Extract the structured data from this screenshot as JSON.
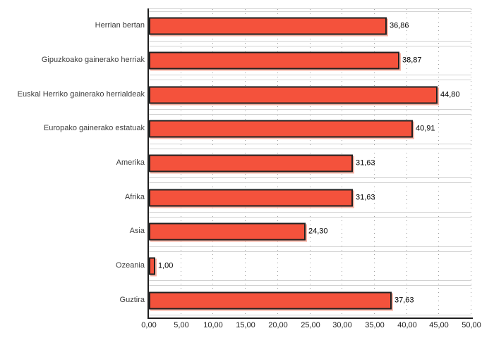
{
  "chart_data": {
    "type": "bar",
    "orientation": "horizontal",
    "title": "",
    "xlabel": "",
    "ylabel": "",
    "legend": "none",
    "grid": "vertical-dotted",
    "xlim": [
      0,
      50
    ],
    "categories": [
      "Herrian bertan",
      "Gipuzkoako gainerako herriak",
      "Euskal Herriko gainerako herrialdeak",
      "Europako gainerako estatuak",
      "Amerika",
      "Afrika",
      "Asia",
      "Ozeania",
      "Guztira"
    ],
    "values": [
      36.86,
      38.87,
      44.8,
      40.91,
      31.63,
      31.63,
      24.3,
      1.0,
      37.63
    ],
    "value_labels": [
      "36,86",
      "38,87",
      "44,80",
      "40,91",
      "31,63",
      "31,63",
      "24,30",
      "1,00",
      "37,63"
    ],
    "x_ticks": [
      {
        "value": 0,
        "label": "0,00"
      },
      {
        "value": 5,
        "label": "5,00"
      },
      {
        "value": 10,
        "label": "10,00"
      },
      {
        "value": 15,
        "label": "15,00"
      },
      {
        "value": 20,
        "label": "20,00"
      },
      {
        "value": 25,
        "label": "25,00"
      },
      {
        "value": 30,
        "label": "30,00"
      },
      {
        "value": 35,
        "label": "35,00"
      },
      {
        "value": 40,
        "label": "40,00"
      },
      {
        "value": 45,
        "label": "45,00"
      },
      {
        "value": 50,
        "label": "50,00"
      }
    ]
  },
  "style": {
    "bar_fill": "#f4523c",
    "bar_border": "#212121",
    "bar_shadow": "#f6b4a6",
    "axis_color": "#1f1f1f",
    "grid_dot_color": "#9f9f9f",
    "band_line_color": "#d2d2d2",
    "category_text_color": "#3d3d3d",
    "value_text_color": "#000000",
    "tick_text_color": "#222222",
    "background": "#ffffff"
  }
}
